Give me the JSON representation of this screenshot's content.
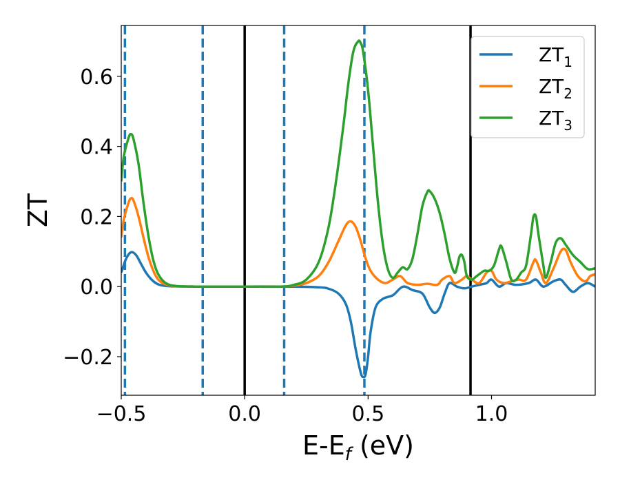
{
  "chart_data": {
    "type": "line",
    "xlabel": {
      "main": "E-E",
      "sub": "f",
      "suffix": " (eV)"
    },
    "ylabel": "ZT",
    "xlim": [
      -0.5,
      1.42
    ],
    "ylim": [
      -0.31,
      0.745
    ],
    "xticks": [
      -0.5,
      0.0,
      0.5,
      1.0
    ],
    "xtick_labels": [
      "−0.5",
      "0.0",
      "0.5",
      "1.0"
    ],
    "yticks": [
      -0.2,
      0.0,
      0.2,
      0.4,
      0.6
    ],
    "ytick_labels": [
      "−0.2",
      "0.0",
      "0.2",
      "0.4",
      "0.6"
    ],
    "grid": false,
    "legend_position": "top-right",
    "vertical_lines": [
      {
        "x": -0.485,
        "style": "dashed",
        "color": "#1f77b4"
      },
      {
        "x": -0.17,
        "style": "dashed",
        "color": "#1f77b4"
      },
      {
        "x": 0.0,
        "style": "solid",
        "color": "#000000"
      },
      {
        "x": 0.16,
        "style": "dashed",
        "color": "#1f77b4"
      },
      {
        "x": 0.485,
        "style": "dashed",
        "color": "#1f77b4"
      },
      {
        "x": 0.915,
        "style": "solid",
        "color": "#000000"
      }
    ],
    "series": [
      {
        "name": "ZT",
        "sub": "1",
        "color": "#1f77b4",
        "points": [
          [
            -0.5,
            0.04
          ],
          [
            -0.48,
            0.08
          ],
          [
            -0.46,
            0.098
          ],
          [
            -0.44,
            0.09
          ],
          [
            -0.42,
            0.065
          ],
          [
            -0.4,
            0.04
          ],
          [
            -0.38,
            0.022
          ],
          [
            -0.36,
            0.01
          ],
          [
            -0.34,
            0.004
          ],
          [
            -0.3,
            0.001
          ],
          [
            -0.2,
            0.0
          ],
          [
            0.0,
            0.0
          ],
          [
            0.2,
            0.0
          ],
          [
            0.3,
            -0.002
          ],
          [
            0.34,
            -0.006
          ],
          [
            0.38,
            -0.02
          ],
          [
            0.41,
            -0.05
          ],
          [
            0.43,
            -0.1
          ],
          [
            0.45,
            -0.18
          ],
          [
            0.47,
            -0.245
          ],
          [
            0.48,
            -0.258
          ],
          [
            0.49,
            -0.25
          ],
          [
            0.5,
            -0.2
          ],
          [
            0.51,
            -0.13
          ],
          [
            0.53,
            -0.06
          ],
          [
            0.56,
            -0.035
          ],
          [
            0.6,
            -0.025
          ],
          [
            0.63,
            -0.005
          ],
          [
            0.65,
            0.0
          ],
          [
            0.68,
            -0.01
          ],
          [
            0.72,
            -0.02
          ],
          [
            0.75,
            -0.06
          ],
          [
            0.77,
            -0.075
          ],
          [
            0.79,
            -0.06
          ],
          [
            0.81,
            -0.02
          ],
          [
            0.83,
            0.01
          ],
          [
            0.86,
            0.0
          ],
          [
            0.89,
            -0.005
          ],
          [
            0.92,
            0.0
          ],
          [
            0.95,
            0.005
          ],
          [
            0.98,
            0.01
          ],
          [
            1.0,
            0.02
          ],
          [
            1.03,
            0.0
          ],
          [
            1.06,
            0.01
          ],
          [
            1.1,
            0.005
          ],
          [
            1.15,
            0.01
          ],
          [
            1.18,
            0.02
          ],
          [
            1.21,
            0.0
          ],
          [
            1.25,
            0.015
          ],
          [
            1.28,
            0.02
          ],
          [
            1.3,
            0.005
          ],
          [
            1.33,
            -0.015
          ],
          [
            1.36,
            0.0
          ],
          [
            1.39,
            0.01
          ],
          [
            1.42,
            0.0
          ]
        ]
      },
      {
        "name": "ZT",
        "sub": "2",
        "color": "#ff7f0e",
        "points": [
          [
            -0.5,
            0.14
          ],
          [
            -0.49,
            0.19
          ],
          [
            -0.47,
            0.24
          ],
          [
            -0.46,
            0.252
          ],
          [
            -0.45,
            0.245
          ],
          [
            -0.43,
            0.2
          ],
          [
            -0.41,
            0.14
          ],
          [
            -0.39,
            0.085
          ],
          [
            -0.37,
            0.045
          ],
          [
            -0.35,
            0.02
          ],
          [
            -0.32,
            0.006
          ],
          [
            -0.28,
            0.001
          ],
          [
            -0.2,
            0.0
          ],
          [
            0.0,
            0.0
          ],
          [
            0.15,
            0.0
          ],
          [
            0.2,
            0.003
          ],
          [
            0.25,
            0.01
          ],
          [
            0.3,
            0.03
          ],
          [
            0.34,
            0.07
          ],
          [
            0.38,
            0.13
          ],
          [
            0.41,
            0.175
          ],
          [
            0.43,
            0.186
          ],
          [
            0.45,
            0.17
          ],
          [
            0.47,
            0.13
          ],
          [
            0.49,
            0.08
          ],
          [
            0.51,
            0.045
          ],
          [
            0.54,
            0.02
          ],
          [
            0.57,
            0.01
          ],
          [
            0.6,
            0.02
          ],
          [
            0.63,
            0.03
          ],
          [
            0.66,
            0.01
          ],
          [
            0.7,
            0.005
          ],
          [
            0.74,
            0.008
          ],
          [
            0.78,
            0.005
          ],
          [
            0.8,
            0.02
          ],
          [
            0.83,
            0.03
          ],
          [
            0.85,
            0.01
          ],
          [
            0.88,
            0.02
          ],
          [
            0.9,
            0.03
          ],
          [
            0.92,
            0.02
          ],
          [
            0.95,
            0.01
          ],
          [
            0.98,
            0.04
          ],
          [
            1.0,
            0.045
          ],
          [
            1.02,
            0.02
          ],
          [
            1.05,
            0.01
          ],
          [
            1.08,
            0.015
          ],
          [
            1.11,
            0.02
          ],
          [
            1.14,
            0.02
          ],
          [
            1.17,
            0.07
          ],
          [
            1.18,
            0.075
          ],
          [
            1.2,
            0.04
          ],
          [
            1.22,
            0.01
          ],
          [
            1.25,
            0.05
          ],
          [
            1.28,
            0.1
          ],
          [
            1.3,
            0.105
          ],
          [
            1.32,
            0.07
          ],
          [
            1.35,
            0.03
          ],
          [
            1.38,
            0.015
          ],
          [
            1.4,
            0.03
          ],
          [
            1.42,
            0.035
          ]
        ]
      },
      {
        "name": "ZT",
        "sub": "3",
        "color": "#2ca02c",
        "points": [
          [
            -0.5,
            0.3
          ],
          [
            -0.49,
            0.37
          ],
          [
            -0.47,
            0.425
          ],
          [
            -0.46,
            0.435
          ],
          [
            -0.45,
            0.42
          ],
          [
            -0.43,
            0.35
          ],
          [
            -0.41,
            0.24
          ],
          [
            -0.39,
            0.145
          ],
          [
            -0.37,
            0.075
          ],
          [
            -0.35,
            0.035
          ],
          [
            -0.32,
            0.01
          ],
          [
            -0.28,
            0.002
          ],
          [
            -0.2,
            0.0
          ],
          [
            0.0,
            0.0
          ],
          [
            0.15,
            0.0
          ],
          [
            0.2,
            0.005
          ],
          [
            0.25,
            0.02
          ],
          [
            0.3,
            0.07
          ],
          [
            0.34,
            0.17
          ],
          [
            0.37,
            0.3
          ],
          [
            0.4,
            0.46
          ],
          [
            0.42,
            0.58
          ],
          [
            0.44,
            0.67
          ],
          [
            0.46,
            0.7
          ],
          [
            0.47,
            0.695
          ],
          [
            0.48,
            0.67
          ],
          [
            0.5,
            0.56
          ],
          [
            0.52,
            0.4
          ],
          [
            0.54,
            0.24
          ],
          [
            0.56,
            0.12
          ],
          [
            0.58,
            0.05
          ],
          [
            0.6,
            0.025
          ],
          [
            0.62,
            0.04
          ],
          [
            0.64,
            0.055
          ],
          [
            0.66,
            0.05
          ],
          [
            0.68,
            0.08
          ],
          [
            0.7,
            0.15
          ],
          [
            0.72,
            0.23
          ],
          [
            0.74,
            0.27
          ],
          [
            0.75,
            0.272
          ],
          [
            0.77,
            0.25
          ],
          [
            0.79,
            0.21
          ],
          [
            0.81,
            0.15
          ],
          [
            0.83,
            0.08
          ],
          [
            0.85,
            0.04
          ],
          [
            0.86,
            0.055
          ],
          [
            0.87,
            0.085
          ],
          [
            0.88,
            0.09
          ],
          [
            0.89,
            0.07
          ],
          [
            0.9,
            0.03
          ],
          [
            0.92,
            0.02
          ],
          [
            0.94,
            0.03
          ],
          [
            0.97,
            0.045
          ],
          [
            0.99,
            0.045
          ],
          [
            1.01,
            0.06
          ],
          [
            1.03,
            0.105
          ],
          [
            1.04,
            0.115
          ],
          [
            1.06,
            0.07
          ],
          [
            1.08,
            0.02
          ],
          [
            1.1,
            0.02
          ],
          [
            1.12,
            0.04
          ],
          [
            1.14,
            0.06
          ],
          [
            1.16,
            0.15
          ],
          [
            1.17,
            0.2
          ],
          [
            1.18,
            0.2
          ],
          [
            1.19,
            0.15
          ],
          [
            1.21,
            0.06
          ],
          [
            1.22,
            0.025
          ],
          [
            1.24,
            0.07
          ],
          [
            1.26,
            0.125
          ],
          [
            1.28,
            0.138
          ],
          [
            1.3,
            0.12
          ],
          [
            1.33,
            0.09
          ],
          [
            1.36,
            0.07
          ],
          [
            1.39,
            0.05
          ],
          [
            1.42,
            0.052
          ]
        ]
      }
    ]
  }
}
